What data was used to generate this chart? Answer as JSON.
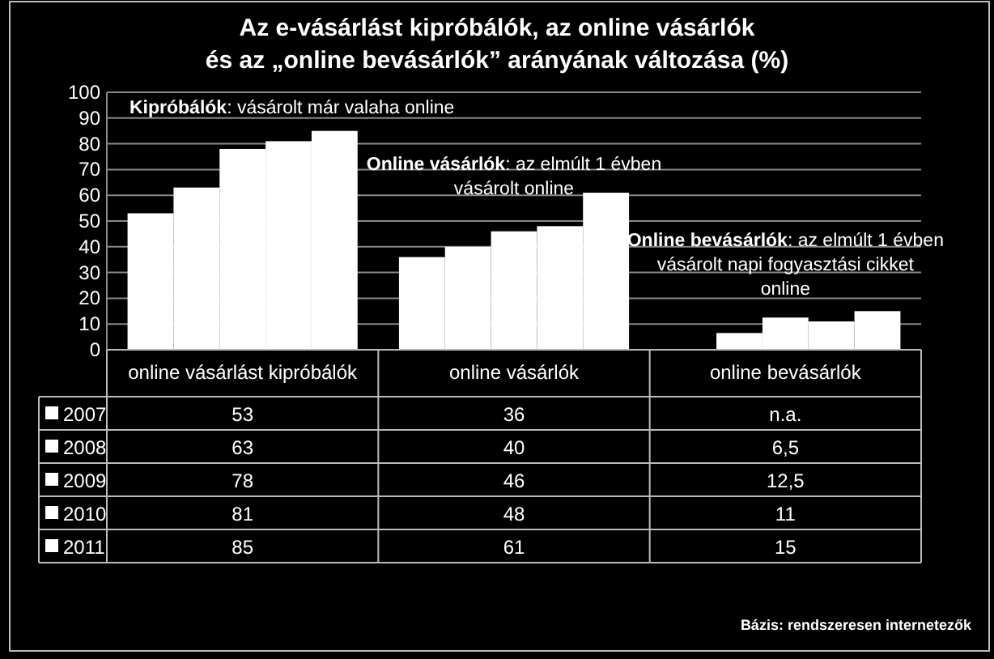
{
  "chart_data": {
    "type": "bar",
    "title": "Az e-vásárlást kipróbálók, az  online vásárlók\nés az „online bevásárlók” arányának változása (%)",
    "categories": [
      "online vásárlást kipróbálók",
      "online vásárlók",
      "online bevásárlók"
    ],
    "series": [
      {
        "name": "2007",
        "color": "#ffffff",
        "values": [
          53,
          36,
          null
        ],
        "value_labels": [
          "53",
          "36",
          "n.a."
        ]
      },
      {
        "name": "2008",
        "color": "#ffffff",
        "values": [
          63,
          40,
          6.5
        ],
        "value_labels": [
          "63",
          "40",
          "6,5"
        ]
      },
      {
        "name": "2009",
        "color": "#ffffff",
        "values": [
          78,
          46,
          12.5
        ],
        "value_labels": [
          "78",
          "46",
          "12,5"
        ]
      },
      {
        "name": "2010",
        "color": "#ffffff",
        "values": [
          81,
          48,
          11
        ],
        "value_labels": [
          "81",
          "48",
          "11"
        ]
      },
      {
        "name": "2011",
        "color": "#ffffff",
        "values": [
          85,
          61,
          15
        ],
        "value_labels": [
          "85",
          "61",
          "15"
        ]
      }
    ],
    "ylim": [
      0,
      100
    ],
    "yticks": [
      0,
      10,
      20,
      30,
      40,
      50,
      60,
      70,
      80,
      90,
      100
    ],
    "grid": "y",
    "legend": "bottom",
    "annotations": [
      "Kipróbálók: vásárolt már valaha online",
      "Online vásárlók: az elmúlt 1 évben vásárolt online",
      "Online bevásárlók: az elmúlt 1 évben vásárolt napi fogyasztási cikket online",
      "Bázis: rendszeresen internetezők"
    ]
  }
}
